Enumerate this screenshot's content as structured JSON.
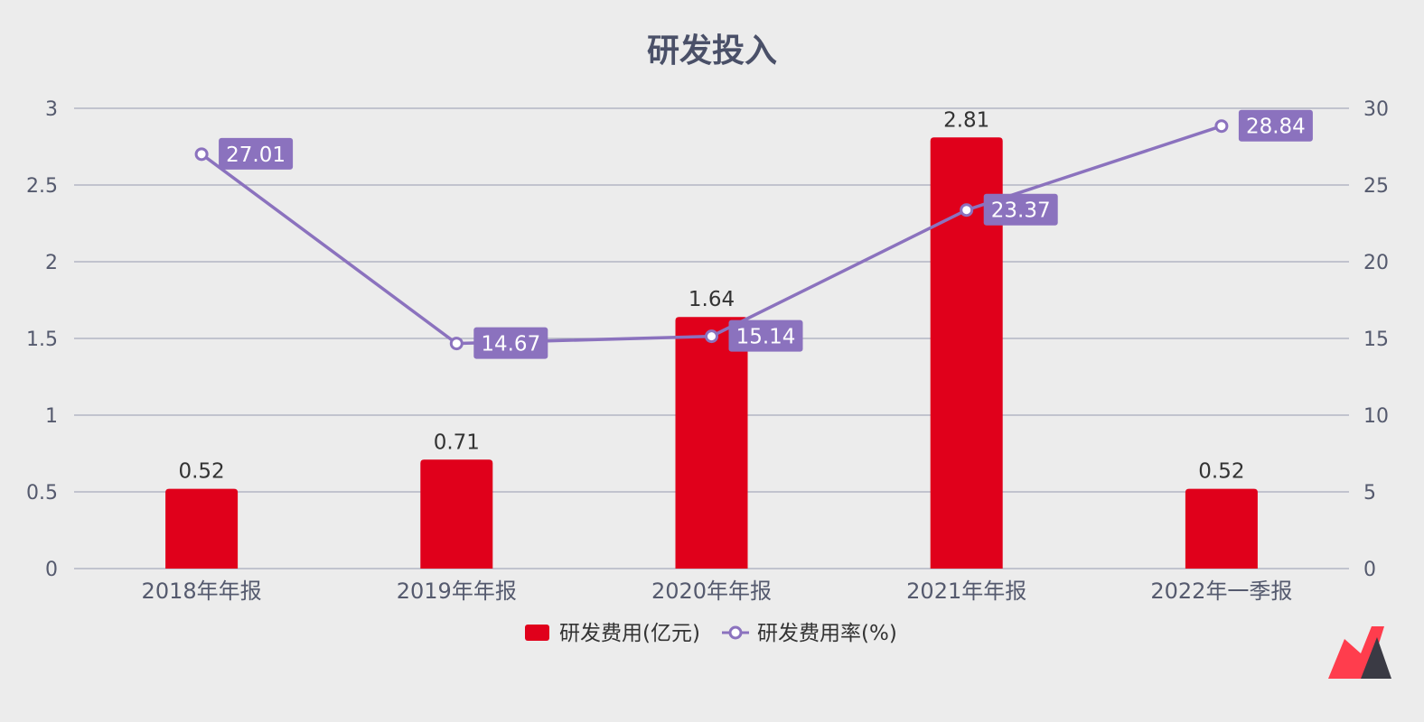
{
  "chart_data": {
    "type": "bar",
    "title": "研发投入",
    "categories": [
      "2018年年报",
      "2019年年报",
      "2020年年报",
      "2021年年报",
      "2022年一季报"
    ],
    "series": [
      {
        "name": "研发费用(亿元)",
        "type": "bar",
        "axis": "left",
        "color": "#e0001b",
        "values": [
          0.52,
          0.71,
          1.64,
          2.81,
          0.52
        ]
      },
      {
        "name": "研发费用率(%)",
        "type": "line",
        "axis": "right",
        "color": "#8b72be",
        "values": [
          27.01,
          14.67,
          15.14,
          23.37,
          28.84
        ]
      }
    ],
    "y_left": {
      "ylim": [
        0,
        3
      ],
      "ticks": [
        "0",
        "0.5",
        "1",
        "1.5",
        "2",
        "2.5",
        "3"
      ]
    },
    "y_right": {
      "ylim": [
        0,
        30
      ],
      "ticks": [
        "0",
        "5",
        "10",
        "15",
        "20",
        "25",
        "30"
      ]
    },
    "grid": true,
    "legend_position": "bottom-center"
  },
  "logo": {
    "name": "brand-logo-icon",
    "colors": [
      "#ff3d4d",
      "#3a3a44"
    ]
  }
}
